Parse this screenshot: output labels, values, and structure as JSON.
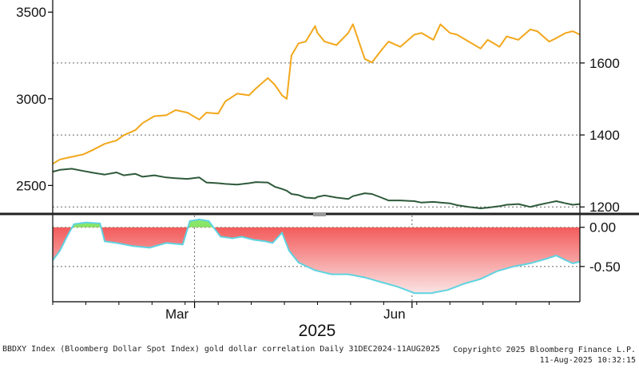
{
  "chart_data": {
    "type": "line",
    "upper_panel": {
      "left_axis": {
        "ticks": [
          2500,
          3000,
          3500
        ],
        "ylim": [
          2345,
          3570
        ]
      },
      "right_axis": {
        "ticks": [
          1200,
          1400,
          1600
        ],
        "ylim": [
          1185,
          1775
        ]
      },
      "grid": "dotted",
      "series": [
        {
          "axis": "left",
          "color": "#f2a71b",
          "x": [
            "2024-12-31",
            "2025-01-03",
            "2025-01-08",
            "2025-01-13",
            "2025-01-17",
            "2025-01-22",
            "2025-01-27",
            "2025-01-30",
            "2025-02-04",
            "2025-02-07",
            "2025-02-12",
            "2025-02-17",
            "2025-02-21",
            "2025-02-26",
            "2025-03-03",
            "2025-03-06",
            "2025-03-11",
            "2025-03-14",
            "2025-03-19",
            "2025-03-24",
            "2025-03-27",
            "2025-04-01",
            "2025-04-04",
            "2025-04-07",
            "2025-04-09",
            "2025-04-11",
            "2025-04-14",
            "2025-04-17",
            "2025-04-21",
            "2025-04-22",
            "2025-04-25",
            "2025-04-30",
            "2025-05-05",
            "2025-05-07",
            "2025-05-12",
            "2025-05-15",
            "2025-05-19",
            "2025-05-22",
            "2025-05-27",
            "2025-06-02",
            "2025-06-05",
            "2025-06-10",
            "2025-06-13",
            "2025-06-17",
            "2025-06-20",
            "2025-06-25",
            "2025-06-30",
            "2025-07-03",
            "2025-07-08",
            "2025-07-11",
            "2025-07-16",
            "2025-07-21",
            "2025-07-24",
            "2025-07-29",
            "2025-08-01",
            "2025-08-05",
            "2025-08-08",
            "2025-08-11"
          ],
          "values": [
            2625,
            2650,
            2665,
            2680,
            2705,
            2740,
            2760,
            2790,
            2820,
            2860,
            2900,
            2905,
            2935,
            2920,
            2880,
            2920,
            2915,
            2985,
            3030,
            3020,
            3060,
            3120,
            3080,
            3020,
            3000,
            3250,
            3320,
            3330,
            3420,
            3380,
            3330,
            3310,
            3380,
            3430,
            3230,
            3210,
            3280,
            3330,
            3300,
            3370,
            3380,
            3340,
            3430,
            3380,
            3370,
            3330,
            3290,
            3340,
            3300,
            3360,
            3340,
            3400,
            3390,
            3330,
            3350,
            3380,
            3390,
            3370
          ]
        },
        {
          "axis": "right",
          "color": "#2e5a3a",
          "x": [
            "2024-12-31",
            "2025-01-03",
            "2025-01-08",
            "2025-01-13",
            "2025-01-17",
            "2025-01-22",
            "2025-01-27",
            "2025-01-30",
            "2025-02-04",
            "2025-02-07",
            "2025-02-12",
            "2025-02-17",
            "2025-02-21",
            "2025-02-26",
            "2025-03-03",
            "2025-03-06",
            "2025-03-11",
            "2025-03-14",
            "2025-03-19",
            "2025-03-24",
            "2025-03-27",
            "2025-04-01",
            "2025-04-04",
            "2025-04-07",
            "2025-04-09",
            "2025-04-11",
            "2025-04-14",
            "2025-04-17",
            "2025-04-21",
            "2025-04-22",
            "2025-04-25",
            "2025-04-30",
            "2025-05-05",
            "2025-05-07",
            "2025-05-12",
            "2025-05-15",
            "2025-05-19",
            "2025-05-22",
            "2025-05-27",
            "2025-06-02",
            "2025-06-05",
            "2025-06-10",
            "2025-06-13",
            "2025-06-17",
            "2025-06-20",
            "2025-06-25",
            "2025-06-30",
            "2025-07-03",
            "2025-07-08",
            "2025-07-11",
            "2025-07-16",
            "2025-07-21",
            "2025-07-24",
            "2025-07-29",
            "2025-08-01",
            "2025-08-05",
            "2025-08-08",
            "2025-08-11"
          ],
          "values": [
            1298,
            1303,
            1306,
            1300,
            1295,
            1290,
            1296,
            1288,
            1292,
            1284,
            1288,
            1282,
            1280,
            1278,
            1282,
            1268,
            1266,
            1264,
            1262,
            1266,
            1269,
            1268,
            1256,
            1250,
            1245,
            1236,
            1233,
            1226,
            1224,
            1228,
            1232,
            1226,
            1222,
            1230,
            1238,
            1236,
            1226,
            1218,
            1218,
            1216,
            1212,
            1214,
            1212,
            1210,
            1205,
            1200,
            1196,
            1198,
            1202,
            1206,
            1208,
            1200,
            1205,
            1212,
            1216,
            1210,
            1206,
            1208
          ]
        }
      ]
    },
    "lower_panel": {
      "type": "area",
      "ticks": [
        0.0,
        -0.5
      ],
      "tick_labels": [
        "0.00",
        "-0.50"
      ],
      "ylim": [
        -0.95,
        0.15
      ],
      "fill_negative": "#f24b4b",
      "fill_positive": "#5ed84e",
      "line_color": "#5fd3e0",
      "x": [
        "2024-12-31",
        "2025-01-03",
        "2025-01-06",
        "2025-01-09",
        "2025-01-14",
        "2025-01-20",
        "2025-01-22",
        "2025-01-27",
        "2025-02-03",
        "2025-02-10",
        "2025-02-17",
        "2025-02-24",
        "2025-02-27",
        "2025-03-03",
        "2025-03-07",
        "2025-03-12",
        "2025-03-17",
        "2025-03-21",
        "2025-03-26",
        "2025-03-31",
        "2025-04-03",
        "2025-04-07",
        "2025-04-10",
        "2025-04-14",
        "2025-04-21",
        "2025-04-28",
        "2025-05-05",
        "2025-05-12",
        "2025-05-19",
        "2025-05-26",
        "2025-06-02",
        "2025-06-09",
        "2025-06-16",
        "2025-06-23",
        "2025-06-30",
        "2025-07-07",
        "2025-07-14",
        "2025-07-21",
        "2025-07-28",
        "2025-08-01",
        "2025-08-05",
        "2025-08-08",
        "2025-08-11"
      ],
      "values": [
        -0.42,
        -0.3,
        -0.12,
        0.04,
        0.06,
        0.05,
        -0.18,
        -0.2,
        -0.24,
        -0.26,
        -0.2,
        -0.22,
        0.08,
        0.1,
        0.08,
        -0.12,
        -0.14,
        -0.12,
        -0.16,
        -0.18,
        -0.2,
        -0.07,
        -0.3,
        -0.45,
        -0.55,
        -0.6,
        -0.6,
        -0.64,
        -0.7,
        -0.76,
        -0.84,
        -0.84,
        -0.8,
        -0.72,
        -0.66,
        -0.56,
        -0.5,
        -0.46,
        -0.4,
        -0.36,
        -0.42,
        -0.46,
        -0.44
      ]
    },
    "x_axis": {
      "range": [
        "2024-12-31",
        "2025-08-11"
      ],
      "month_labels": [
        {
          "date": "2025-03-01",
          "label": "Mar"
        },
        {
          "date": "2025-06-01",
          "label": "Jun"
        }
      ],
      "year_label": "2025"
    }
  },
  "footer": {
    "left": "BBDXY Index (Bloomberg Dollar Spot Index) gold dollar correlation  Daily 31DEC2024-11AUG2025",
    "right_line1": "Copyright© 2025 Bloomberg Finance L.P.",
    "right_line2": "11-Aug-2025 10:32:15"
  }
}
